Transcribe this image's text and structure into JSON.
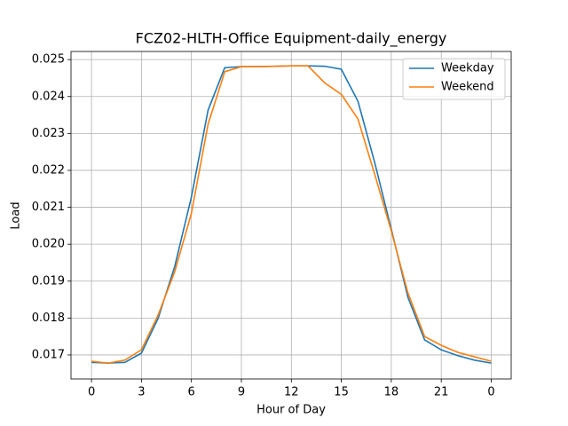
{
  "chart_data": {
    "type": "line",
    "title": "FCZ02-HLTH-Office Equipment-daily_energy",
    "x_label": "Hour of Day",
    "y_label": "Load",
    "x": [
      0,
      1,
      2,
      3,
      4,
      5,
      6,
      7,
      8,
      9,
      10,
      11,
      12,
      13,
      14,
      15,
      16,
      17,
      18,
      19,
      20,
      21,
      22,
      23,
      24
    ],
    "series": [
      {
        "name": "Weekday",
        "color": "#1f77b4",
        "values": [
          0.0168,
          0.01678,
          0.0168,
          0.01705,
          0.01799,
          0.0194,
          0.02128,
          0.02363,
          0.02478,
          0.02481,
          0.02481,
          0.02482,
          0.02483,
          0.02483,
          0.02482,
          0.02474,
          0.02387,
          0.02222,
          0.02041,
          0.01856,
          0.01741,
          0.01714,
          0.01698,
          0.01686,
          0.01678
        ]
      },
      {
        "name": "Weekend",
        "color": "#ff7f0e",
        "values": [
          0.01683,
          0.01678,
          0.01686,
          0.01714,
          0.01808,
          0.01926,
          0.02084,
          0.02325,
          0.02467,
          0.02481,
          0.02481,
          0.02482,
          0.02483,
          0.02483,
          0.02437,
          0.02406,
          0.02339,
          0.0219,
          0.02036,
          0.01868,
          0.0175,
          0.01726,
          0.01707,
          0.01695,
          0.01683
        ]
      }
    ],
    "xlim": [
      -1.23,
      25.2
    ],
    "xticks": [
      0,
      3,
      6,
      9,
      12,
      15,
      18,
      21,
      {
        "value": 24,
        "label": "0"
      }
    ],
    "ylim": [
      0.01635,
      0.02522
    ],
    "yticks": [
      0.017,
      0.018,
      0.019,
      {
        "value": 0.02,
        "label": "0.020"
      },
      0.021,
      0.022,
      0.023,
      0.024,
      0.025
    ],
    "grid": true,
    "legend": "upper right"
  }
}
